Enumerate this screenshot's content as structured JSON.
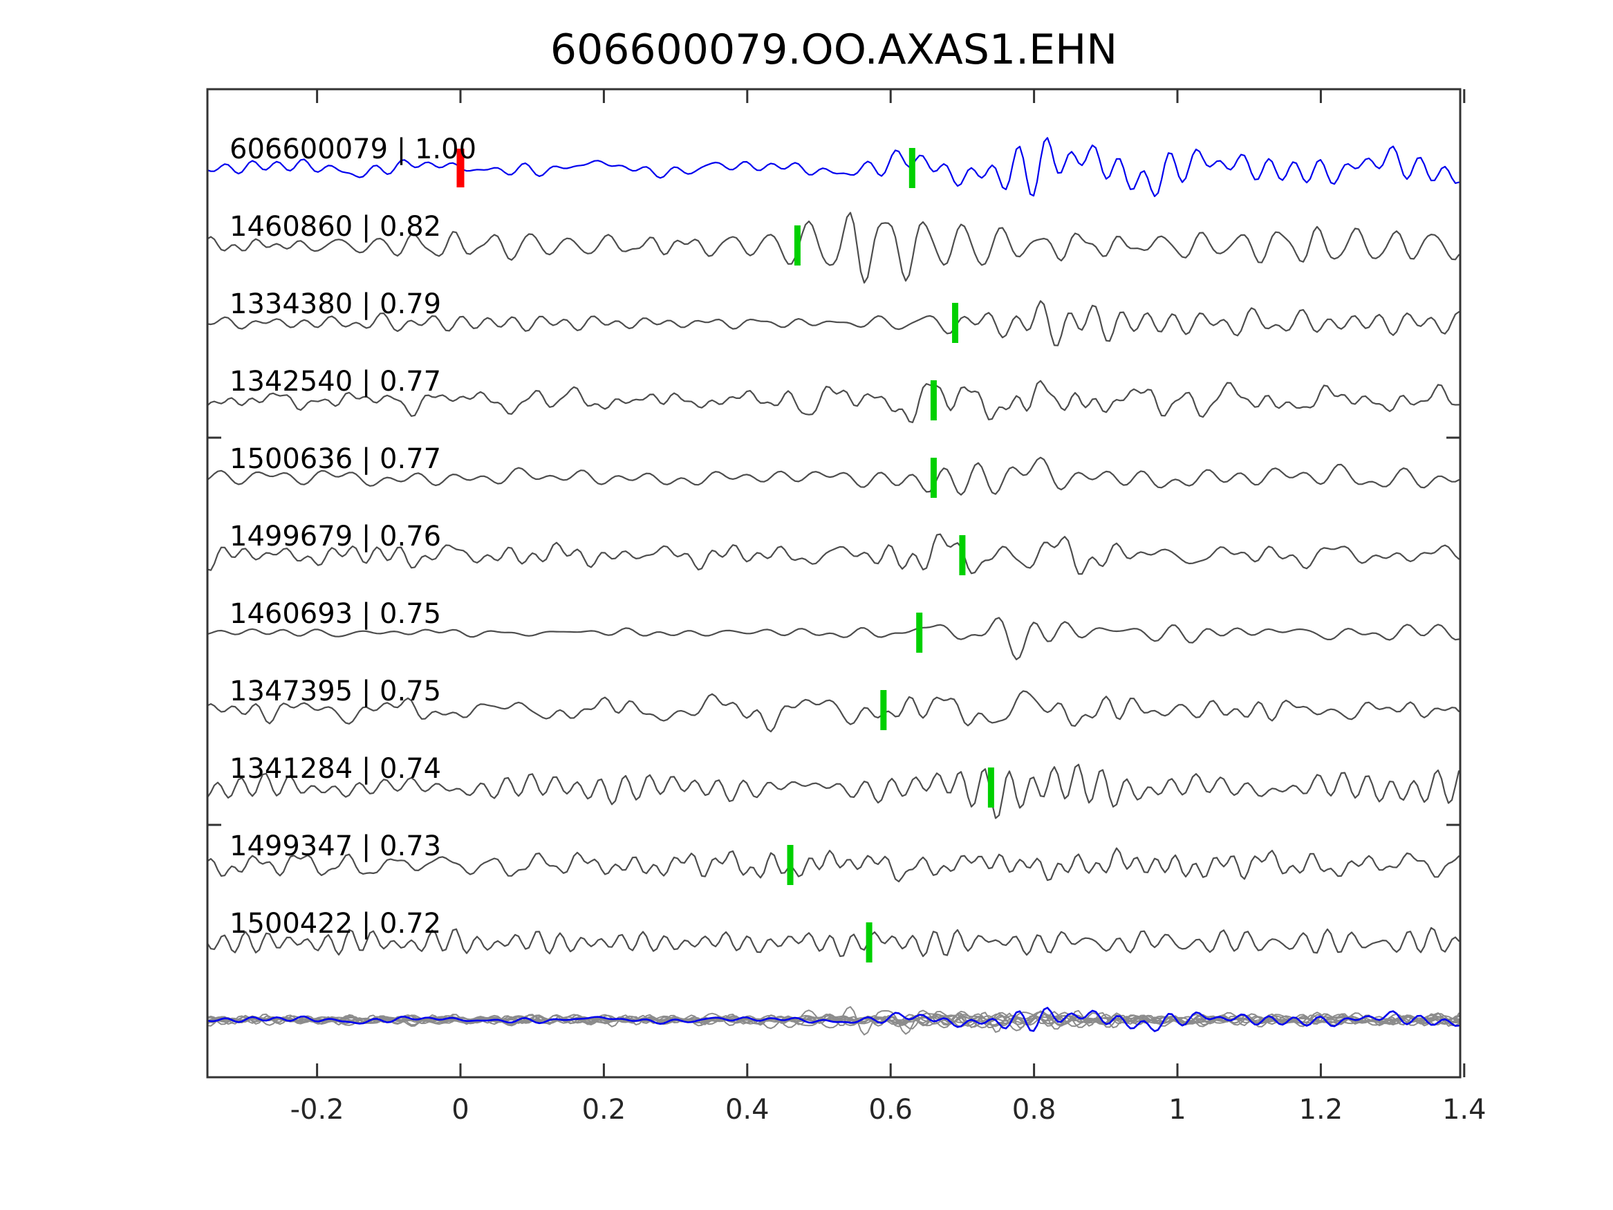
{
  "title": "606600079.OO.AXAS1.EHN",
  "colors": {
    "template_line": "#0000ee",
    "detection_line": "#4d4d4d",
    "overlay_line": "#8c8c8c",
    "pick_marker": "#00d000",
    "origin_marker": "#ff0000",
    "axis": "#333333",
    "text": "#000000"
  },
  "axis": {
    "x_ticks": [
      "-0.2",
      "0",
      "0.2",
      "0.4",
      "0.6",
      "0.8",
      "1",
      "1.2",
      "1.4"
    ],
    "x_tick_values": [
      -0.2,
      0,
      0.2,
      0.4,
      0.6,
      0.8,
      1.0,
      1.2,
      1.4
    ],
    "xlim": [
      -0.353,
      1.394
    ],
    "y_ticks_visible": 2
  },
  "chart_data": {
    "type": "line",
    "title": "606600079.OO.AXAS1.EHN",
    "xlabel": "",
    "ylabel": "",
    "xlim": [
      -0.353,
      1.394
    ],
    "x_tick_values": [
      -0.2,
      0,
      0.2,
      0.4,
      0.6,
      0.8,
      1.0,
      1.2,
      1.4
    ],
    "description": "Template-matching waveform comparison: top blue trace is the template event, gray traces are matched detections ordered by cross-correlation; green bars mark pick times, red bar marks template zero time; bottom row overlays all traces.",
    "traces": [
      {
        "label": "606600079 | 1.00",
        "id": "606600079",
        "correlation": 1.0,
        "role": "template",
        "pick_time": 0.63,
        "origin_time": 0.0
      },
      {
        "label": "1460860 | 0.82",
        "id": "1460860",
        "correlation": 0.82,
        "role": "detection",
        "pick_time": 0.47
      },
      {
        "label": "1334380 | 0.79",
        "id": "1334380",
        "correlation": 0.79,
        "role": "detection",
        "pick_time": 0.69
      },
      {
        "label": "1342540 | 0.77",
        "id": "1342540",
        "correlation": 0.77,
        "role": "detection",
        "pick_time": 0.66
      },
      {
        "label": "1500636 | 0.77",
        "id": "1500636",
        "correlation": 0.77,
        "role": "detection",
        "pick_time": 0.66
      },
      {
        "label": "1499679 | 0.76",
        "id": "1499679",
        "correlation": 0.76,
        "role": "detection",
        "pick_time": 0.7
      },
      {
        "label": "1460693 | 0.75",
        "id": "1460693",
        "correlation": 0.75,
        "role": "detection",
        "pick_time": 0.64
      },
      {
        "label": "1347395 | 0.75",
        "id": "1347395",
        "correlation": 0.75,
        "role": "detection",
        "pick_time": 0.59
      },
      {
        "label": "1341284 | 0.74",
        "id": "1341284",
        "correlation": 0.74,
        "role": "detection",
        "pick_time": 0.74
      },
      {
        "label": "1499347 | 0.73",
        "id": "1499347",
        "correlation": 0.73,
        "role": "detection",
        "pick_time": 0.46
      },
      {
        "label": "1500422 | 0.72",
        "id": "1500422",
        "correlation": 0.72,
        "role": "detection",
        "pick_time": 0.57
      }
    ],
    "overlay_row": {
      "description": "All 11 traces superimposed (gray) with the template trace drawn on top in blue",
      "trace_count": 12,
      "includes_template": true
    }
  }
}
